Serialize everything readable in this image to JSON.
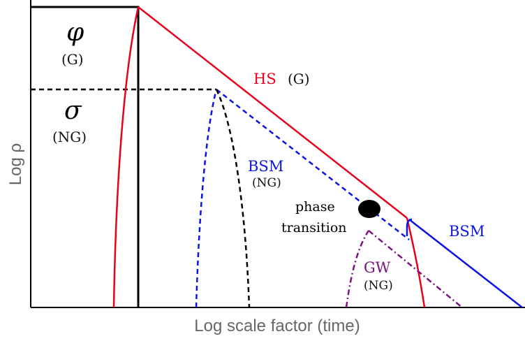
{
  "axes": {
    "xlabel": "Log scale factor (time)",
    "ylabel": "Log ρ"
  },
  "labels": {
    "phi_symbol": "φ",
    "phi_tag": "(G)",
    "sigma_symbol": "σ",
    "sigma_tag": "(NG)",
    "hs_name": "HS",
    "hs_tag": "(G)",
    "bsm_dashed_name": "BSM",
    "bsm_dashed_tag": "(NG)",
    "phase_line1": "phase",
    "phase_line2": "transition",
    "bsm_solid_name": "BSM",
    "gw_name": "GW",
    "gw_tag": "(NG)"
  },
  "colors": {
    "hs": "#e8001c",
    "bsm": "#0a14e6",
    "gw": "#7a1480",
    "phi": "#000000",
    "sigma": "#000000",
    "axis_text": "#666666"
  }
}
